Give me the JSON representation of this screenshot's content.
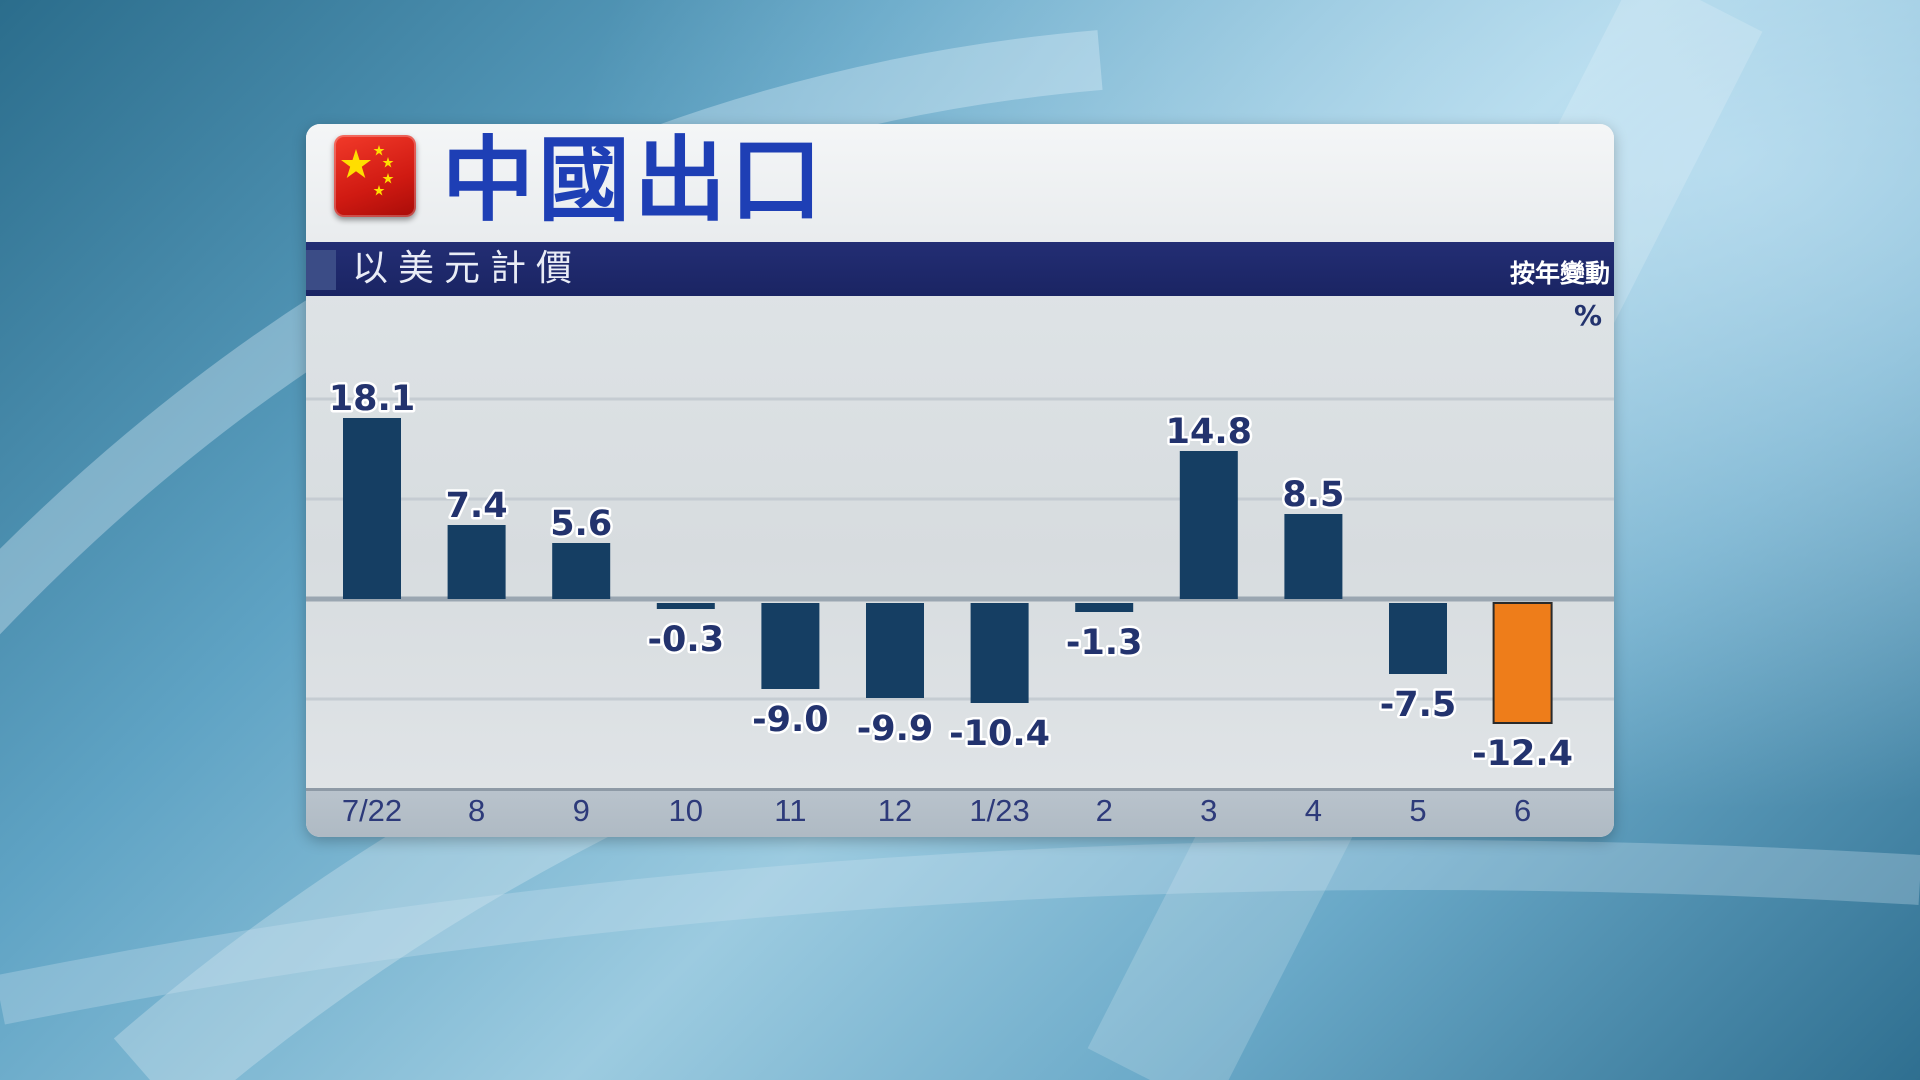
{
  "header": {
    "title": "中國出口",
    "subtitle": "以美元計價",
    "measure_label": "按年變動",
    "unit_label": "%"
  },
  "colors": {
    "bar": "#153e63",
    "highlight_bar": "#ee7d1a",
    "title": "#1e3fb5",
    "header_band": "#1a2463",
    "label": "#23336e"
  },
  "icons": {
    "flag": "china-flag-icon"
  },
  "chart_data": {
    "type": "bar",
    "title": "中國出口",
    "subtitle": "以美元計價",
    "ylabel": "按年變動 %",
    "categories": [
      "7/22",
      "8",
      "9",
      "10",
      "11",
      "12",
      "1/23",
      "2",
      "3",
      "4",
      "5",
      "6"
    ],
    "values": [
      18.1,
      7.4,
      5.6,
      -0.3,
      -9.0,
      -9.9,
      -10.4,
      -1.3,
      14.8,
      8.5,
      -7.5,
      -12.4
    ],
    "value_labels": [
      "18.1",
      "7.4",
      "5.6",
      "-0.3",
      "-9.0",
      "-9.9",
      "-10.4",
      "-1.3",
      "14.8",
      "8.5",
      "-7.5",
      "-12.4"
    ],
    "highlight_index": 11,
    "ylim": [
      -17,
      27
    ],
    "grid": true,
    "legend": "none"
  }
}
